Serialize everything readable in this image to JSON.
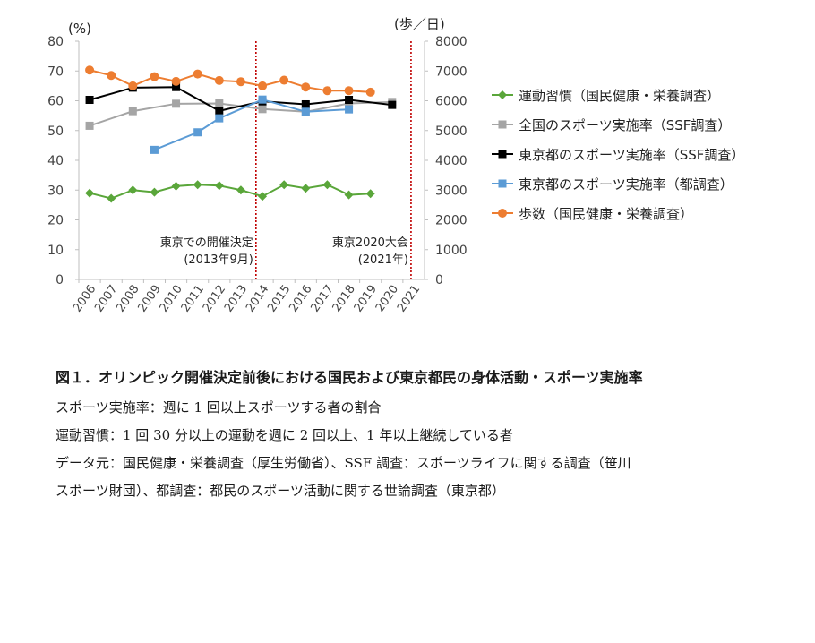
{
  "chart_data": {
    "type": "line",
    "categories": [
      "2006",
      "2007",
      "2008",
      "2009",
      "2010",
      "2011",
      "2012",
      "2013",
      "2014",
      "2015",
      "2016",
      "2017",
      "2018",
      "2019",
      "2020",
      "2021"
    ],
    "ylabel_left": "(%)",
    "ylabel_right": "(歩／日)",
    "ylim_left": [
      0,
      80
    ],
    "ylim_right": [
      0,
      8000
    ],
    "yticks_left": [
      "0",
      "10",
      "20",
      "30",
      "40",
      "50",
      "60",
      "70",
      "80"
    ],
    "yticks_right": [
      "0",
      "1000",
      "2000",
      "3000",
      "4000",
      "5000",
      "6000",
      "7000",
      "8000"
    ],
    "grid": false,
    "legend_position": "right",
    "series": [
      {
        "name": "運動習慣（国民健康・栄養調査）",
        "axis": "left",
        "color": "#5aa63a",
        "marker": "diamond",
        "values": [
          29,
          27.2,
          30,
          29.3,
          31.3,
          31.8,
          31.5,
          30,
          27.9,
          31.8,
          30.6,
          31.8,
          28.4,
          28.8,
          null,
          null
        ]
      },
      {
        "name": "全国のスポーツ実施率（SSF調査）",
        "axis": "left",
        "color": "#a5a5a5",
        "marker": "square",
        "values": [
          51.6,
          null,
          56.5,
          null,
          59,
          null,
          59.1,
          null,
          57.2,
          null,
          56.3,
          null,
          59.1,
          null,
          59.6,
          null
        ]
      },
      {
        "name": "東京都のスポーツ実施率（SSF調査）",
        "axis": "left",
        "color": "#000000",
        "marker": "square",
        "values": [
          60.3,
          null,
          64.4,
          null,
          64.6,
          null,
          56.6,
          null,
          59.8,
          null,
          58.8,
          null,
          60.3,
          null,
          58.6,
          null
        ]
      },
      {
        "name": "東京都のスポーツ実施率（都調査）",
        "axis": "left",
        "color": "#5b9bd5",
        "marker": "square",
        "values": [
          null,
          null,
          null,
          43.5,
          null,
          49.4,
          54.1,
          null,
          60.4,
          null,
          56.3,
          null,
          57.1,
          null,
          null,
          null
        ]
      },
      {
        "name": "歩数（国民健康・栄養調査）",
        "axis": "right",
        "color": "#ed7d31",
        "marker": "circle",
        "values": [
          7030,
          6850,
          6500,
          6810,
          6650,
          6900,
          6680,
          6640,
          6500,
          6690,
          6460,
          6340,
          6340,
          6290,
          null,
          null
        ]
      }
    ],
    "annotations": [
      {
        "line1": "東京での開催決定",
        "line2": "(2013年9月)",
        "x": 2013.7
      },
      {
        "line1": "東京2020大会",
        "line2": "(2021年)",
        "x": 2021
      }
    ]
  },
  "caption": {
    "title": "図１．オリンピック開催決定前後における国民および東京都民の身体活動・スポーツ実施率",
    "lines": [
      "スポーツ実施率：週に 1 回以上スポーツする者の割合",
      "運動習慣：1 回 30 分以上の運動を週に 2 回以上、1 年以上継続している者",
      "データ元：国民健康・栄養調査（厚生労働省）、SSF 調査：スポーツライフに関する調査（笹川",
      "スポーツ財団）、都調査：都民のスポーツ活動に関する世論調査（東京都）"
    ]
  }
}
